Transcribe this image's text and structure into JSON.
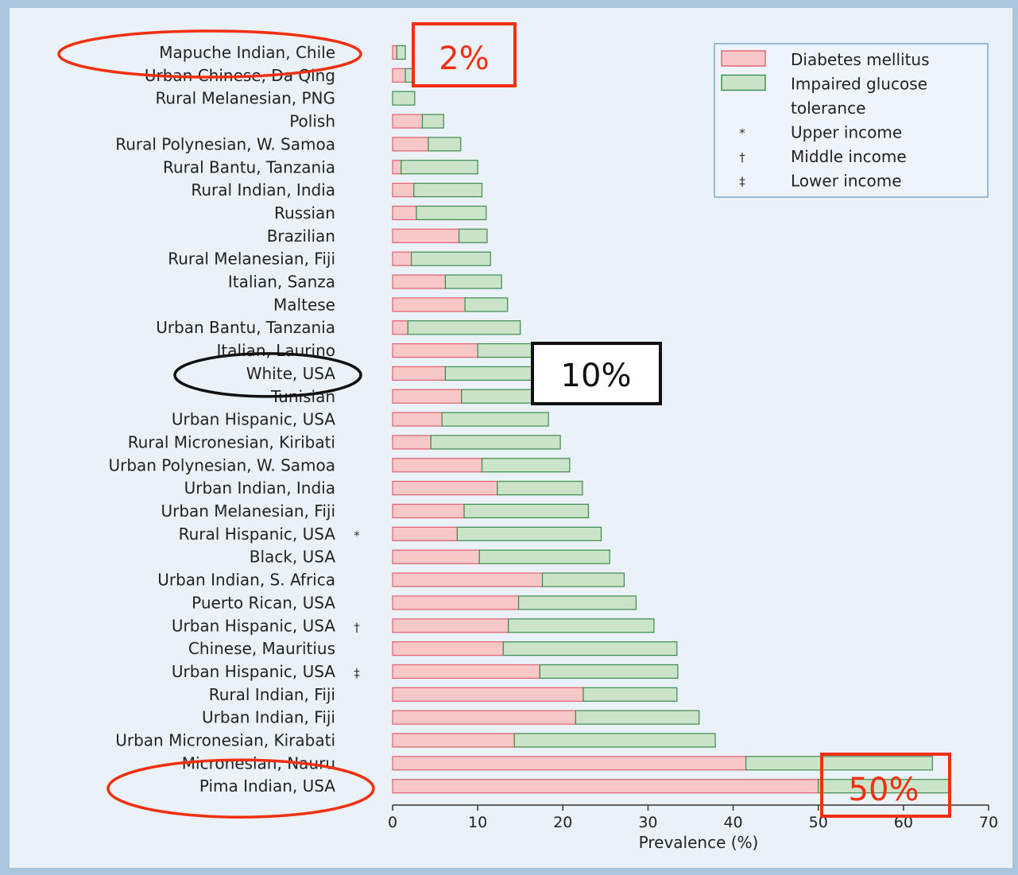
{
  "colors": {
    "page_bg": "#eaf2f8",
    "dm_fill": "#f8c8c8",
    "dm_stroke": "#e06070",
    "igt_fill": "#cbe3c9",
    "igt_stroke": "#3e8a4e",
    "red_highlight": "#f03010",
    "black_highlight": "#111111"
  },
  "chart_data": {
    "type": "bar",
    "orientation": "horizontal",
    "stacked": true,
    "xlabel": "Prevalence (%)",
    "xlim": [
      0,
      70
    ],
    "xticks": [
      0,
      10,
      20,
      30,
      40,
      50,
      60,
      70
    ],
    "categories": [
      "Mapuche Indian, Chile",
      "Urban Chinese, Da Qing",
      "Rural Melanesian, PNG",
      "Polish",
      "Rural Polynesian, W. Samoa",
      "Rural Bantu, Tanzania",
      "Rural Indian, India",
      "Russian",
      "Brazilian",
      "Rural Melanesian, Fiji",
      "Italian, Sanza",
      "Maltese",
      "Urban Bantu, Tanzania",
      "Italian, Laurino",
      "White, USA",
      "Tunisian",
      "Urban Hispanic, USA",
      "Rural Micronesian, Kiribati",
      "Urban Polynesian, W. Samoa",
      "Urban Indian, India",
      "Urban Melanesian, Fiji",
      "Rural Hispanic, USA",
      "Black, USA",
      "Urban Indian, S. Africa",
      "Puerto Rican, USA",
      "Urban Hispanic, USA",
      "Chinese, Mauritius",
      "Urban Hispanic, USA",
      "Rural Indian, Fiji",
      "Urban Indian, Fiji",
      "Urban Micronesian, Kirabati",
      "Micronesian, Nauru",
      "Pima Indian, USA"
    ],
    "income_markers": [
      "",
      "",
      "",
      "",
      "",
      "",
      "",
      "",
      "",
      "",
      "",
      "",
      "",
      "",
      "",
      "",
      "",
      "",
      "",
      "",
      "",
      "*",
      "",
      "",
      "",
      "†",
      "",
      "‡",
      "",
      "",
      "",
      "",
      ""
    ],
    "series": [
      {
        "name": "Diabetes mellitus",
        "values": [
          0.5,
          1.5,
          0,
          3.5,
          4.2,
          1,
          2.5,
          2.8,
          7.8,
          2.2,
          6.2,
          8.5,
          1.8,
          10,
          6.2,
          8.1,
          5.8,
          4.5,
          10.5,
          12.3,
          8.4,
          7.6,
          10.2,
          17.6,
          14.8,
          13.6,
          13,
          17.3,
          22.4,
          21.5,
          14.3,
          41.5,
          50
        ]
      },
      {
        "name": "Impaired glucose tolerance",
        "values": [
          1.0,
          0.8,
          2.6,
          2.5,
          3.8,
          9,
          8,
          8.2,
          3.3,
          9.3,
          6.6,
          5.0,
          13.2,
          6.8,
          11.3,
          10.0,
          12.5,
          15.2,
          10.3,
          10.0,
          14.6,
          16.9,
          15.3,
          9.6,
          13.8,
          17.1,
          20.4,
          16.2,
          11.0,
          14.5,
          23.6,
          21.9,
          15.5
        ]
      }
    ],
    "legend": {
      "placement": "top-right",
      "entries": [
        {
          "kind": "swatch",
          "series": 0,
          "label": "Diabetes mellitus"
        },
        {
          "kind": "swatch",
          "series": 1,
          "label": "Impaired glucose"
        },
        {
          "kind": "text",
          "symbol": "",
          "label": "tolerance"
        },
        {
          "kind": "text",
          "symbol": "*",
          "label": "Upper income"
        },
        {
          "kind": "text",
          "symbol": "†",
          "label": "Middle income"
        },
        {
          "kind": "text",
          "symbol": "‡",
          "label": "Lower income"
        }
      ]
    }
  },
  "annotations": [
    {
      "kind": "ellipse",
      "color": "red",
      "target_row": 0
    },
    {
      "kind": "box",
      "color": "red",
      "text": "2%",
      "near_value": 2,
      "near_row": 0
    },
    {
      "kind": "ellipse",
      "color": "black",
      "target_row": 14
    },
    {
      "kind": "box",
      "color": "black",
      "text": "10%",
      "near_value": 17,
      "near_row": 14.5
    },
    {
      "kind": "ellipse",
      "color": "red",
      "target_row": 32
    },
    {
      "kind": "box",
      "color": "red",
      "text": "50%",
      "near_value": 50,
      "near_row": 32
    }
  ]
}
